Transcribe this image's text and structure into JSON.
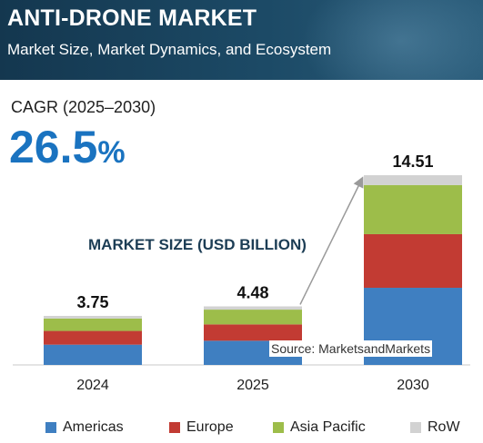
{
  "header": {
    "title": "ANTI-DRONE MARKET",
    "subtitle": "Market Size, Market Dynamics, and Ecosystem"
  },
  "cagr": {
    "label": "CAGR (2025–2030)",
    "value": "26.5",
    "unit": "%"
  },
  "source": "Source: MarketsandMarkets",
  "chart_data": {
    "type": "bar",
    "stacked": true,
    "title": "MARKET SIZE (USD BILLION)",
    "categories": [
      "2024",
      "2025",
      "2030"
    ],
    "totals": [
      "3.75",
      "4.48",
      "14.51"
    ],
    "series": [
      {
        "name": "Americas",
        "color": "#3f7fc1",
        "values": [
          1.55,
          1.85,
          5.9
        ]
      },
      {
        "name": "Europe",
        "color": "#c23b33",
        "values": [
          1.05,
          1.25,
          4.1
        ]
      },
      {
        "name": "Asia Pacific",
        "color": "#9dbd4a",
        "values": [
          0.95,
          1.13,
          3.76
        ]
      },
      {
        "name": "RoW",
        "color": "#d2d2d2",
        "values": [
          0.2,
          0.25,
          0.75
        ]
      }
    ],
    "ylim": [
      0,
      14.51
    ],
    "grid": false,
    "legend_position": "bottom"
  }
}
